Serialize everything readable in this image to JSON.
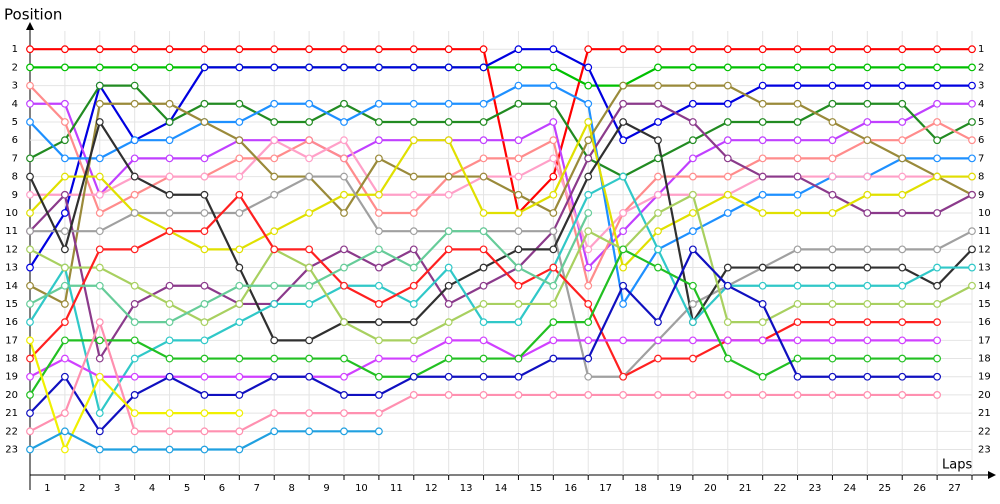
{
  "chart_data": {
    "type": "line",
    "y_title": "Position",
    "x_title": "Laps",
    "x": [
      0,
      1,
      2,
      3,
      4,
      5,
      6,
      7,
      8,
      9,
      10,
      11,
      12,
      13,
      14,
      15,
      16,
      17,
      18,
      19,
      20,
      21,
      22,
      23,
      24,
      25,
      26,
      27
    ],
    "xlim": [
      0,
      27
    ],
    "xticks": [
      1,
      2,
      3,
      4,
      5,
      6,
      7,
      8,
      9,
      10,
      11,
      12,
      13,
      14,
      15,
      16,
      17,
      18,
      19,
      20,
      21,
      22,
      23,
      24,
      25,
      26,
      27
    ],
    "ylim": [
      24.4,
      0
    ],
    "yticks": [
      1,
      2,
      3,
      4,
      5,
      6,
      7,
      8,
      9,
      10,
      11,
      12,
      13,
      14,
      15,
      16,
      17,
      18,
      19,
      20,
      21,
      22,
      23
    ],
    "grid": true,
    "series": [
      {
        "color": "#ff0000",
        "values": [
          1,
          1,
          1,
          1,
          1,
          1,
          1,
          1,
          1,
          1,
          1,
          1,
          1,
          1,
          10,
          8,
          1,
          1,
          1,
          1,
          1,
          1,
          1,
          1,
          1,
          1,
          1,
          1
        ]
      },
      {
        "color": "#00c000",
        "values": [
          2,
          2,
          2,
          2,
          2,
          2,
          2,
          2,
          2,
          2,
          2,
          2,
          2,
          2,
          2,
          2,
          3,
          3,
          2,
          2,
          2,
          2,
          2,
          2,
          2,
          2,
          2,
          2
        ]
      },
      {
        "color": "#0000e0",
        "values": [
          13,
          10,
          3,
          6,
          5,
          2,
          2,
          2,
          2,
          2,
          2,
          2,
          2,
          2,
          1,
          1,
          2,
          6,
          5,
          4,
          4,
          3,
          3,
          3,
          3,
          3,
          3,
          3
        ]
      },
      {
        "color": "#c040ff",
        "values": [
          4,
          4,
          9,
          7,
          7,
          7,
          6,
          6,
          6,
          7,
          6,
          6,
          6,
          6,
          6,
          5,
          13,
          11,
          9,
          7,
          6,
          6,
          6,
          6,
          5,
          5,
          4,
          4
        ]
      },
      {
        "color": "#228b22",
        "values": [
          7,
          6,
          3,
          3,
          5,
          4,
          4,
          5,
          5,
          4,
          5,
          5,
          5,
          5,
          4,
          4,
          7,
          8,
          7,
          6,
          5,
          5,
          5,
          4,
          4,
          4,
          6,
          5
        ]
      },
      {
        "color": "#ff8c8c",
        "values": [
          3,
          5,
          10,
          9,
          8,
          8,
          7,
          7,
          6,
          7,
          10,
          10,
          8,
          7,
          7,
          6,
          14,
          10,
          8,
          8,
          8,
          7,
          7,
          7,
          6,
          6,
          5,
          6
        ]
      },
      {
        "color": "#1e90ff",
        "values": [
          5,
          7,
          7,
          6,
          6,
          5,
          5,
          4,
          4,
          5,
          4,
          4,
          4,
          4,
          3,
          3,
          4,
          15,
          12,
          11,
          10,
          9,
          9,
          8,
          8,
          7,
          7,
          7
        ]
      },
      {
        "color": "#ffa0c8",
        "values": [
          9,
          9,
          9,
          8,
          8,
          8,
          8,
          6,
          7,
          6,
          9,
          9,
          9,
          8,
          8,
          7,
          12,
          10,
          9,
          9,
          9,
          8,
          8,
          8,
          8,
          8,
          8,
          8
        ]
      },
      {
        "color": "#9a8a3a",
        "values": [
          14,
          15,
          4,
          4,
          4,
          5,
          6,
          8,
          8,
          10,
          7,
          8,
          8,
          8,
          9,
          10,
          6,
          3,
          3,
          3,
          3,
          4,
          4,
          5,
          6,
          7,
          8,
          9
        ]
      },
      {
        "color": "#8b3a8b",
        "values": [
          11,
          9,
          18,
          15,
          14,
          14,
          15,
          15,
          13,
          12,
          13,
          12,
          15,
          14,
          13,
          11,
          7,
          4,
          4,
          5,
          7,
          8,
          8,
          9,
          10,
          10,
          10,
          9
        ]
      },
      {
        "color": "#e0e000",
        "values": [
          10,
          8,
          8,
          10,
          11,
          12,
          12,
          11,
          10,
          9,
          9,
          6,
          6,
          10,
          10,
          9,
          5,
          13,
          11,
          10,
          9,
          10,
          10,
          10,
          9,
          9,
          8,
          8
        ]
      },
      {
        "color": "#a0a0a0",
        "values": [
          11,
          11,
          11,
          10,
          10,
          10,
          10,
          9,
          8,
          8,
          11,
          11,
          11,
          11,
          11,
          11,
          19,
          19,
          17,
          15,
          14,
          13,
          12,
          12,
          12,
          12,
          12,
          11
        ]
      },
      {
        "color": "#303030",
        "values": [
          8,
          12,
          5,
          8,
          9,
          9,
          13,
          17,
          17,
          16,
          16,
          16,
          14,
          13,
          12,
          12,
          8,
          5,
          6,
          16,
          13,
          13,
          13,
          13,
          13,
          13,
          14,
          12
        ]
      },
      {
        "color": "#30c8c8",
        "values": [
          16,
          13,
          21,
          18,
          17,
          17,
          16,
          15,
          15,
          14,
          14,
          15,
          13,
          16,
          16,
          13,
          9,
          8,
          12,
          16,
          14,
          14,
          14,
          14,
          14,
          14,
          13,
          13
        ]
      },
      {
        "color": "#a8d060",
        "values": [
          12,
          13,
          13,
          14,
          15,
          16,
          15,
          12,
          13,
          16,
          17,
          17,
          16,
          15,
          15,
          15,
          11,
          12,
          10,
          9,
          16,
          16,
          15,
          15,
          15,
          15,
          15,
          14
        ]
      },
      {
        "color": "#ff2020",
        "values": [
          18,
          16,
          12,
          12,
          11,
          11,
          9,
          12,
          12,
          14,
          15,
          14,
          12,
          12,
          14,
          13,
          15,
          19,
          18,
          18,
          17,
          17,
          16,
          16,
          16,
          16,
          16,
          null
        ]
      },
      {
        "color": "#d040ff",
        "values": [
          19,
          18,
          19,
          19,
          19,
          19,
          19,
          19,
          19,
          19,
          18,
          18,
          17,
          17,
          18,
          17,
          17,
          17,
          17,
          17,
          17,
          17,
          17,
          17,
          17,
          17,
          17,
          null
        ]
      },
      {
        "color": "#22c022",
        "values": [
          20,
          17,
          17,
          17,
          18,
          18,
          18,
          18,
          18,
          18,
          19,
          19,
          18,
          18,
          18,
          16,
          16,
          12,
          13,
          14,
          18,
          19,
          18,
          18,
          18,
          18,
          18,
          null
        ]
      },
      {
        "color": "#1010c0",
        "values": [
          21,
          19,
          22,
          20,
          19,
          20,
          20,
          19,
          19,
          20,
          20,
          19,
          19,
          19,
          19,
          18,
          18,
          14,
          16,
          12,
          14,
          15,
          19,
          19,
          19,
          19,
          19,
          null
        ]
      },
      {
        "color": "#ff90b0",
        "values": [
          22,
          21,
          16,
          22,
          22,
          22,
          22,
          21,
          21,
          21,
          21,
          20,
          20,
          20,
          20,
          20,
          20,
          20,
          20,
          20,
          20,
          20,
          20,
          20,
          20,
          20,
          20,
          null
        ]
      },
      {
        "color": "#66cc99",
        "values": [
          15,
          14,
          14,
          16,
          16,
          15,
          14,
          14,
          14,
          13,
          12,
          13,
          11,
          11,
          13,
          14,
          10,
          null,
          null,
          null,
          null,
          null,
          null,
          null,
          null,
          null,
          null,
          null
        ]
      },
      {
        "color": "#f0f000",
        "values": [
          17,
          23,
          19,
          21,
          21,
          21,
          21,
          null,
          null,
          null,
          null,
          null,
          null,
          null,
          null,
          null,
          null,
          null,
          null,
          null,
          null,
          null,
          null,
          null,
          null,
          null,
          null,
          null
        ]
      },
      {
        "color": "#20a0e0",
        "values": [
          23,
          22,
          23,
          23,
          23,
          23,
          23,
          22,
          22,
          22,
          22,
          null,
          null,
          null,
          null,
          null,
          null,
          null,
          null,
          null,
          null,
          null,
          null,
          null,
          null,
          null,
          null,
          null
        ]
      }
    ]
  }
}
